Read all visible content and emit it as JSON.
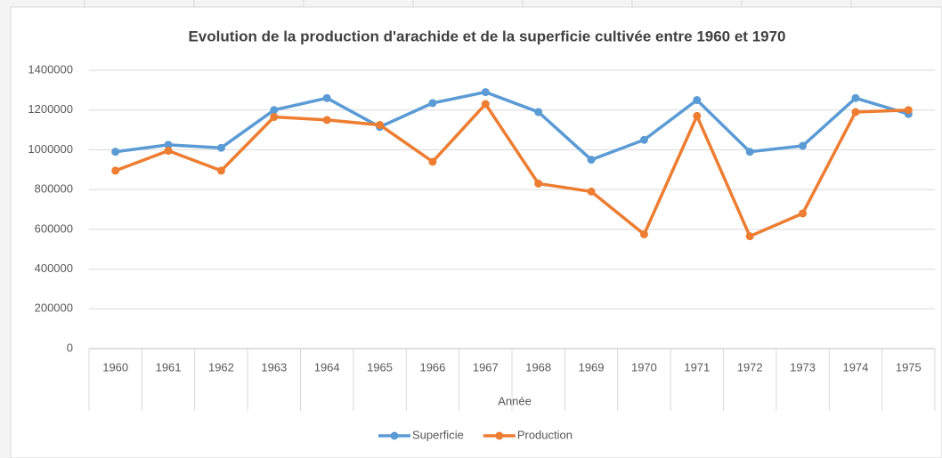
{
  "chart_data": {
    "type": "line",
    "title": "Evolution de la production d'arachide et de la superficie cultivée entre 1960 et 1970",
    "x_label": "Année",
    "categories": [
      "1960",
      "1961",
      "1962",
      "1963",
      "1964",
      "1965",
      "1966",
      "1967",
      "1968",
      "1969",
      "1970",
      "1971",
      "1972",
      "1973",
      "1974",
      "1975"
    ],
    "series": [
      {
        "name": "Superficie",
        "color": "#5b9bd5",
        "values": [
          990000,
          1025000,
          1010000,
          1200000,
          1260000,
          1115000,
          1235000,
          1290000,
          1190000,
          950000,
          1050000,
          1250000,
          990000,
          1020000,
          1260000,
          1180000
        ]
      },
      {
        "name": "Production",
        "color": "#ed7d31",
        "values": [
          895000,
          995000,
          895000,
          1165000,
          1150000,
          1125000,
          940000,
          1230000,
          830000,
          790000,
          575000,
          1170000,
          565000,
          680000,
          1190000,
          1200000
        ]
      }
    ],
    "ylim": [
      0,
      1400000
    ],
    "yticks": [
      0,
      200000,
      400000,
      600000,
      800000,
      1000000,
      1200000,
      1400000
    ],
    "grid": true,
    "legend": "bottom"
  }
}
